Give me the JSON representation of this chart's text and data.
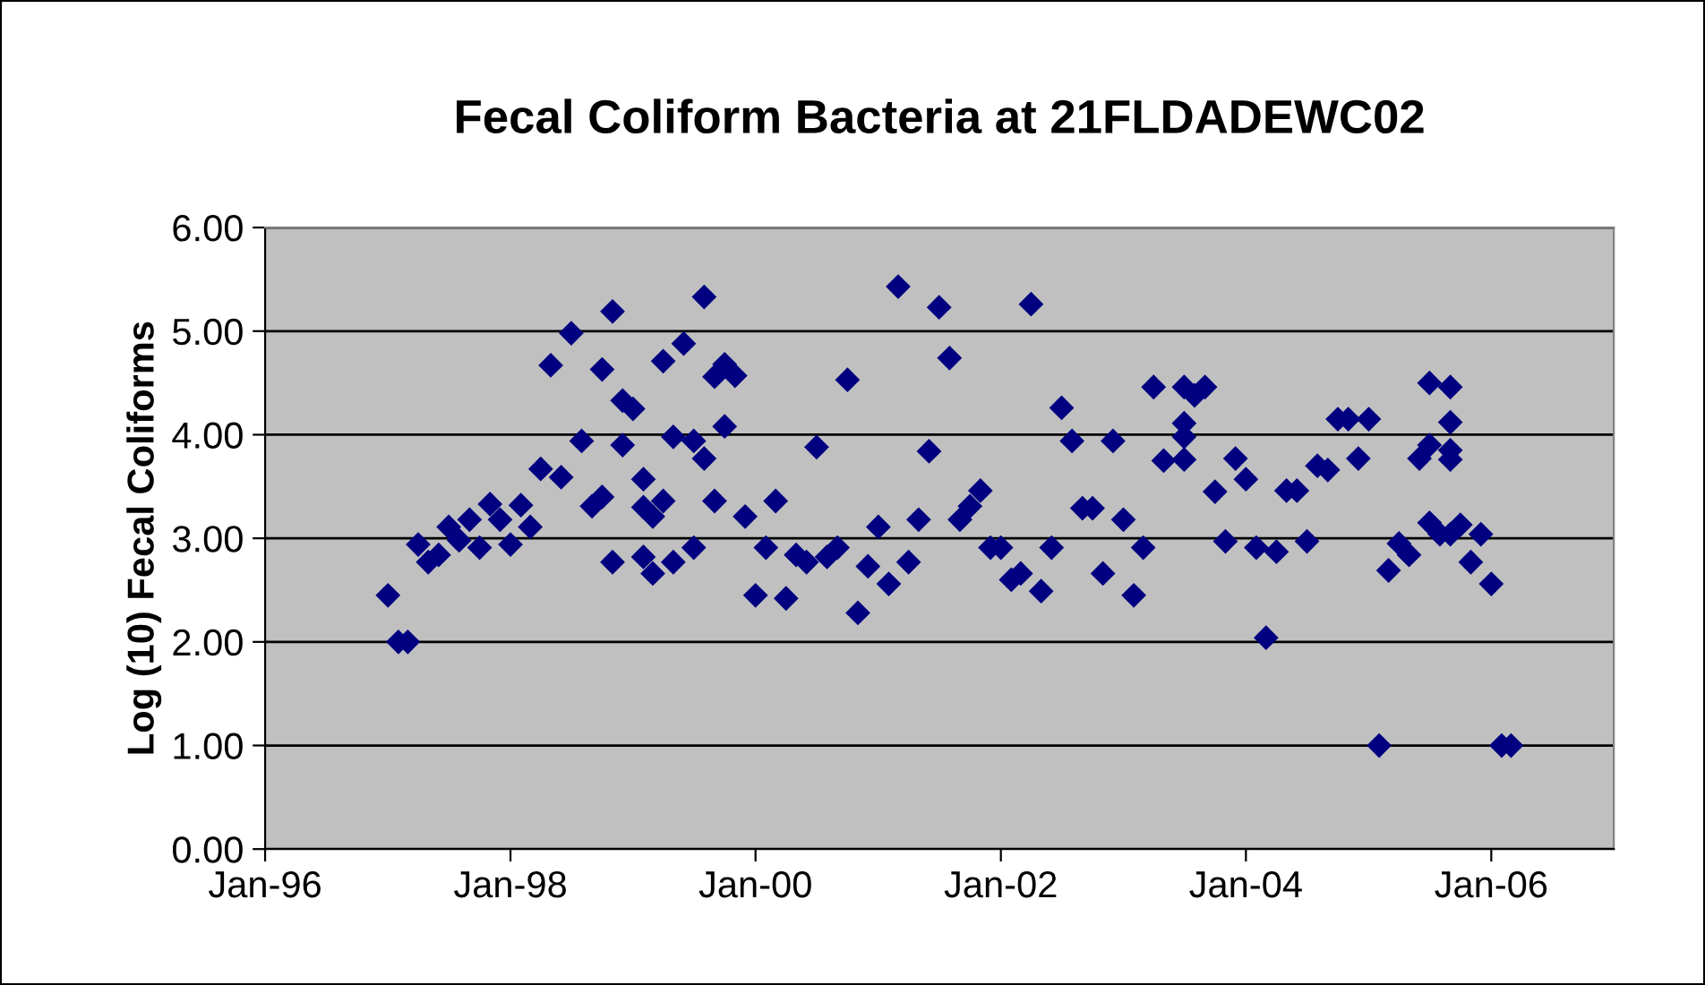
{
  "chart_data": {
    "type": "scatter",
    "title": "Fecal Coliform Bacteria at 21FLDADEWC02",
    "ylabel": "Log (10) Fecal Coliforms",
    "x": [
      "1997-01",
      "1997-02",
      "1997-03",
      "1997-04",
      "1997-05",
      "1997-06",
      "1997-07",
      "1997-08",
      "1997-09",
      "1997-10",
      "1997-11",
      "1997-12",
      "1998-01",
      "1998-02",
      "1998-03",
      "1998-04",
      "1998-05",
      "1998-06",
      "1998-07",
      "1998-08",
      "1998-09",
      "1998-10",
      "1998-10",
      "1998-11",
      "1998-11",
      "1998-12",
      "1998-12",
      "1999-01",
      "1999-02",
      "1999-02",
      "1999-02",
      "1999-03",
      "1999-03",
      "1999-04",
      "1999-04",
      "1999-05",
      "1999-05",
      "1999-06",
      "1999-07",
      "1999-07",
      "1999-08",
      "1999-08",
      "1999-09",
      "1999-09",
      "1999-10",
      "1999-10",
      "1999-11",
      "1999-12",
      "2000-01",
      "2000-02",
      "2000-03",
      "2000-04",
      "2000-05",
      "2000-06",
      "2000-07",
      "2000-08",
      "2000-09",
      "2000-10",
      "2000-11",
      "2000-12",
      "2001-01",
      "2001-02",
      "2001-03",
      "2001-04",
      "2001-05",
      "2001-06",
      "2001-07",
      "2001-08",
      "2001-09",
      "2001-10",
      "2001-11",
      "2001-12",
      "2002-01",
      "2002-02",
      "2002-03",
      "2002-04",
      "2002-05",
      "2002-06",
      "2002-07",
      "2002-08",
      "2002-09",
      "2002-10",
      "2002-11",
      "2002-12",
      "2003-01",
      "2003-02",
      "2003-03",
      "2003-04",
      "2003-05",
      "2003-07",
      "2003-07",
      "2003-07",
      "2003-07",
      "2003-08",
      "2003-09",
      "2003-10",
      "2003-11",
      "2003-12",
      "2004-01",
      "2004-02",
      "2004-03",
      "2004-04",
      "2004-05",
      "2004-06",
      "2004-07",
      "2004-08",
      "2004-09",
      "2004-10",
      "2004-11",
      "2004-12",
      "2005-01",
      "2005-02",
      "2005-03",
      "2005-04",
      "2005-05",
      "2005-06",
      "2005-07",
      "2005-07",
      "2005-07",
      "2005-08",
      "2005-09",
      "2005-09",
      "2005-09",
      "2005-09",
      "2005-09",
      "2005-10",
      "2005-11",
      "2005-12",
      "2006-01",
      "2006-02",
      "2006-03"
    ],
    "series": [
      {
        "color": "#000080",
        "values": [
          2.45,
          2.0,
          2.0,
          2.94,
          2.77,
          2.84,
          3.11,
          2.98,
          3.18,
          2.91,
          3.33,
          3.18,
          2.94,
          3.32,
          3.11,
          3.67,
          4.67,
          3.59,
          4.98,
          3.94,
          3.31,
          3.4,
          4.63,
          2.77,
          5.19,
          4.33,
          3.9,
          4.25,
          3.57,
          3.3,
          2.82,
          3.21,
          2.66,
          3.36,
          4.71,
          3.98,
          2.77,
          4.88,
          2.91,
          3.94,
          3.77,
          5.33,
          3.36,
          4.56,
          4.68,
          4.08,
          4.57,
          3.21,
          2.45,
          2.91,
          3.36,
          2.42,
          2.84,
          2.77,
          3.88,
          2.82,
          2.91,
          4.53,
          2.28,
          2.73,
          3.11,
          2.56,
          5.43,
          2.77,
          3.18,
          3.84,
          5.23,
          4.74,
          3.18,
          3.31,
          3.46,
          2.91,
          2.91,
          2.6,
          2.66,
          5.26,
          2.49,
          2.91,
          4.26,
          3.94,
          3.29,
          3.29,
          2.66,
          3.94,
          3.18,
          2.45,
          2.91,
          4.46,
          3.75,
          3.76,
          4.11,
          4.46,
          3.98,
          4.38,
          4.46,
          3.45,
          2.97,
          3.77,
          3.57,
          2.91,
          2.04,
          2.87,
          3.46,
          3.46,
          2.97,
          3.7,
          3.66,
          4.15,
          4.15,
          3.77,
          4.15,
          1.0,
          2.69,
          2.95,
          2.84,
          3.77,
          3.9,
          4.5,
          3.15,
          3.04,
          4.46,
          4.12,
          3.85,
          3.76,
          3.04,
          3.13,
          2.77,
          3.04,
          2.56,
          1.0,
          1.0
        ]
      }
    ],
    "xlim": [
      "1996-01",
      "2007-01"
    ],
    "xticks": [
      {
        "value": "1996-01",
        "label": "Jan-96"
      },
      {
        "value": "1998-01",
        "label": "Jan-98"
      },
      {
        "value": "2000-01",
        "label": "Jan-00"
      },
      {
        "value": "2002-01",
        "label": "Jan-02"
      },
      {
        "value": "2004-01",
        "label": "Jan-04"
      },
      {
        "value": "2006-01",
        "label": "Jan-06"
      }
    ],
    "ylim": [
      0,
      6
    ],
    "yticks": [
      {
        "value": 0,
        "label": "0.00"
      },
      {
        "value": 1,
        "label": "1.00"
      },
      {
        "value": 2,
        "label": "2.00"
      },
      {
        "value": 3,
        "label": "3.00"
      },
      {
        "value": 4,
        "label": "4.00"
      },
      {
        "value": 5,
        "label": "5.00"
      },
      {
        "value": 6,
        "label": "6.00"
      }
    ],
    "grid": "y",
    "marker": "diamond",
    "legend": false
  }
}
